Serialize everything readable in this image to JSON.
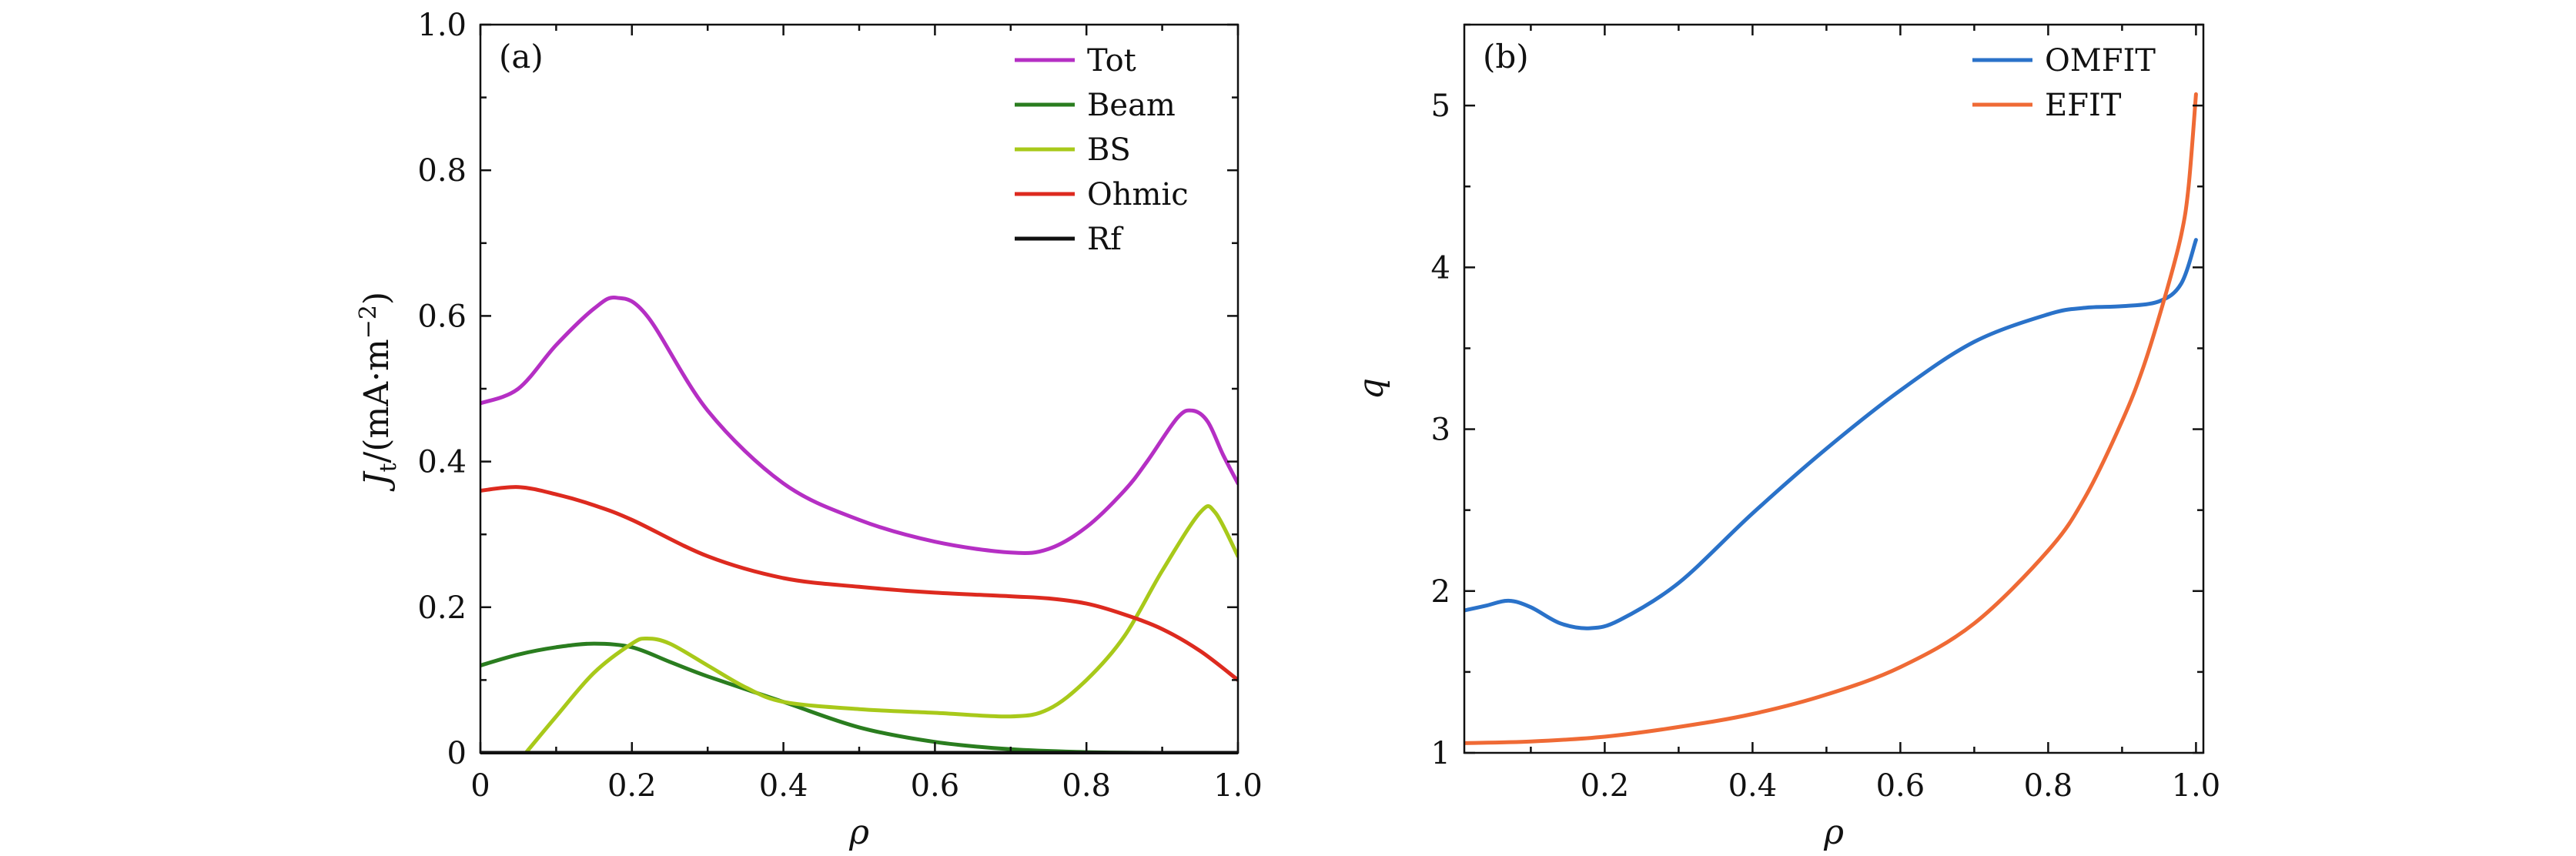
{
  "chart_data": [
    {
      "type": "line",
      "panel_label": "(a)",
      "xlabel": "ρ",
      "ylabel_main": "J",
      "ylabel_sub": "t",
      "ylabel_unit": "/(mA·m",
      "ylabel_exp": "−2",
      "ylabel_close": ")",
      "xlim": [
        0,
        1.0
      ],
      "ylim": [
        0,
        1.0
      ],
      "xticks": [
        0,
        0.2,
        0.4,
        0.6,
        0.8,
        1.0
      ],
      "xtick_labels": [
        "0",
        "0.2",
        "0.4",
        "0.6",
        "0.8",
        "1.0"
      ],
      "yticks": [
        0,
        0.2,
        0.4,
        0.6,
        0.8,
        1.0
      ],
      "ytick_labels": [
        "0",
        "0.2",
        "0.4",
        "0.6",
        "0.8",
        "1.0"
      ],
      "legend_position": "top-right",
      "series": [
        {
          "name": "Tot",
          "color": "#b52fc4",
          "x": [
            0,
            0.05,
            0.1,
            0.15,
            0.18,
            0.22,
            0.3,
            0.4,
            0.5,
            0.6,
            0.7,
            0.75,
            0.8,
            0.85,
            0.88,
            0.92,
            0.94,
            0.96,
            0.98,
            1.0
          ],
          "y": [
            0.48,
            0.5,
            0.56,
            0.61,
            0.625,
            0.6,
            0.47,
            0.37,
            0.32,
            0.29,
            0.275,
            0.28,
            0.31,
            0.36,
            0.4,
            0.46,
            0.47,
            0.455,
            0.41,
            0.37
          ]
        },
        {
          "name": "Beam",
          "color": "#2a7d1f",
          "x": [
            0,
            0.05,
            0.1,
            0.15,
            0.2,
            0.25,
            0.3,
            0.4,
            0.5,
            0.6,
            0.7,
            0.8,
            0.9,
            1.0
          ],
          "y": [
            0.12,
            0.135,
            0.145,
            0.15,
            0.145,
            0.125,
            0.105,
            0.07,
            0.035,
            0.015,
            0.005,
            0.001,
            0.0,
            0.0
          ]
        },
        {
          "name": "BS",
          "color": "#a8c91a",
          "x": [
            0.06,
            0.1,
            0.15,
            0.2,
            0.22,
            0.25,
            0.3,
            0.35,
            0.4,
            0.5,
            0.6,
            0.7,
            0.75,
            0.8,
            0.85,
            0.9,
            0.95,
            0.97,
            1.0
          ],
          "y": [
            0.0,
            0.05,
            0.11,
            0.15,
            0.157,
            0.15,
            0.12,
            0.09,
            0.07,
            0.06,
            0.055,
            0.05,
            0.06,
            0.1,
            0.16,
            0.25,
            0.33,
            0.33,
            0.27
          ]
        },
        {
          "name": "Ohmic",
          "color": "#dd2a1f",
          "x": [
            0,
            0.05,
            0.1,
            0.15,
            0.2,
            0.3,
            0.4,
            0.5,
            0.6,
            0.7,
            0.75,
            0.8,
            0.85,
            0.9,
            0.95,
            1.0
          ],
          "y": [
            0.36,
            0.365,
            0.355,
            0.34,
            0.32,
            0.27,
            0.24,
            0.228,
            0.22,
            0.215,
            0.212,
            0.205,
            0.19,
            0.17,
            0.14,
            0.1
          ]
        },
        {
          "name": "Rf",
          "color": "#111111",
          "x": [
            0,
            1.0
          ],
          "y": [
            0,
            0
          ]
        }
      ]
    },
    {
      "type": "line",
      "panel_label": "(b)",
      "xlabel": "ρ",
      "ylabel": "q",
      "xlim": [
        0.01,
        1.01
      ],
      "ylim": [
        1,
        5.5
      ],
      "xticks": [
        0.2,
        0.4,
        0.6,
        0.8,
        1.0
      ],
      "xtick_labels": [
        "0.2",
        "0.4",
        "0.6",
        "0.8",
        "1.0"
      ],
      "yticks": [
        1,
        2,
        3,
        4,
        5
      ],
      "ytick_labels": [
        "1",
        "2",
        "3",
        "4",
        "5"
      ],
      "legend_position": "top-right",
      "series": [
        {
          "name": "OMFIT",
          "color": "#2a72c9",
          "x": [
            0.01,
            0.04,
            0.07,
            0.1,
            0.14,
            0.18,
            0.22,
            0.3,
            0.4,
            0.5,
            0.6,
            0.7,
            0.8,
            0.85,
            0.9,
            0.95,
            0.98,
            1.0
          ],
          "y": [
            1.88,
            1.91,
            1.94,
            1.9,
            1.8,
            1.77,
            1.82,
            2.05,
            2.48,
            2.88,
            3.24,
            3.54,
            3.71,
            3.75,
            3.76,
            3.79,
            3.9,
            4.17
          ]
        },
        {
          "name": "EFIT",
          "color": "#ef6a35",
          "x": [
            0.01,
            0.1,
            0.2,
            0.3,
            0.4,
            0.5,
            0.6,
            0.7,
            0.8,
            0.85,
            0.9,
            0.93,
            0.96,
            0.98,
            0.99,
            1.0
          ],
          "y": [
            1.06,
            1.07,
            1.1,
            1.16,
            1.24,
            1.36,
            1.53,
            1.8,
            2.25,
            2.58,
            3.05,
            3.4,
            3.85,
            4.2,
            4.5,
            5.07
          ]
        }
      ]
    }
  ]
}
